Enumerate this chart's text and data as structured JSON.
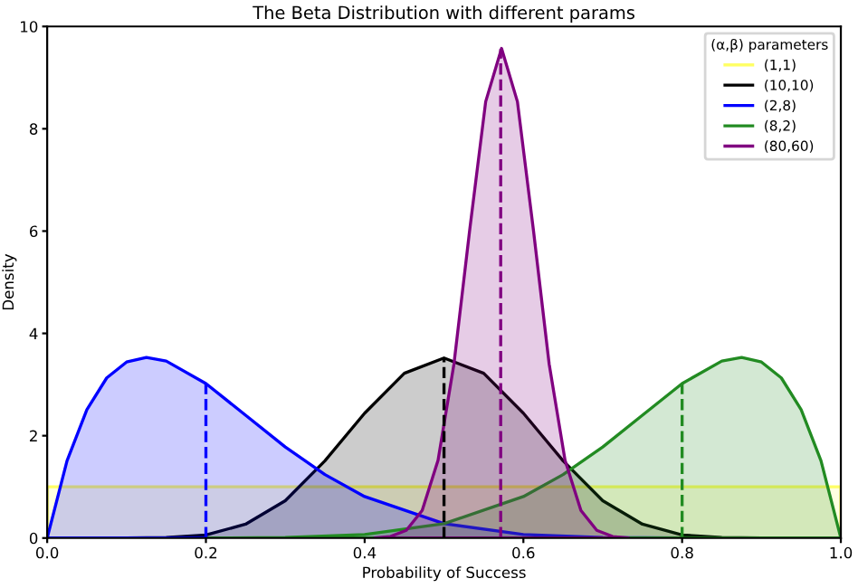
{
  "chart_data": {
    "type": "area",
    "title": "The Beta Distribution with different params",
    "xlabel": "Probability of Success",
    "ylabel": "Density",
    "legend_title": "(α,β) parameters",
    "legend": "top right",
    "grid": false,
    "xlim": [
      0,
      1
    ],
    "ylim": [
      0,
      10
    ],
    "xticks": [
      {
        "value": 0,
        "label": "0.0"
      },
      {
        "value": 0.2,
        "label": "0.2"
      },
      {
        "value": 0.4,
        "label": "0.4"
      },
      {
        "value": 0.6,
        "label": "0.6"
      },
      {
        "value": 0.8,
        "label": "0.8"
      },
      {
        "value": 1,
        "label": "1.0"
      }
    ],
    "yticks": [
      0,
      2,
      4,
      6,
      8,
      10
    ],
    "series": [
      {
        "name": "(1,1)",
        "color": "#ffff66",
        "x": [
          0,
          1
        ],
        "values": [
          1,
          1
        ]
      },
      {
        "name": "(10,10)",
        "color": "#000000",
        "x": [
          0.1,
          0.15,
          0.2,
          0.25,
          0.3,
          0.35,
          0.4,
          0.45,
          0.5,
          0.55,
          0.6,
          0.65,
          0.7,
          0.75,
          0.8,
          0.85,
          0.9
        ],
        "values": [
          0.0,
          0.01,
          0.06,
          0.27,
          0.73,
          1.51,
          2.44,
          3.22,
          3.52,
          3.22,
          2.44,
          1.51,
          0.73,
          0.27,
          0.06,
          0.01,
          0.0
        ]
      },
      {
        "name": "(2,8)",
        "color": "#0000ff",
        "x": [
          0,
          0.025,
          0.05,
          0.075,
          0.1,
          0.125,
          0.15,
          0.2,
          0.25,
          0.3,
          0.35,
          0.4,
          0.5,
          0.6,
          0.7,
          0.8
        ],
        "values": [
          0,
          1.51,
          2.51,
          3.13,
          3.44,
          3.53,
          3.46,
          3.02,
          2.4,
          1.78,
          1.24,
          0.81,
          0.28,
          0.07,
          0.01,
          0.0
        ]
      },
      {
        "name": "(8,2)",
        "color": "#228b22",
        "x": [
          0.2,
          0.3,
          0.4,
          0.5,
          0.6,
          0.65,
          0.7,
          0.75,
          0.8,
          0.85,
          0.875,
          0.9,
          0.925,
          0.95,
          0.975,
          1
        ],
        "values": [
          0.0,
          0.01,
          0.07,
          0.28,
          0.81,
          1.24,
          1.78,
          2.4,
          3.02,
          3.46,
          3.53,
          3.44,
          3.13,
          2.51,
          1.51,
          0
        ]
      },
      {
        "name": "(80,60)",
        "color": "#800080",
        "x": [
          0.4125,
          0.4325,
          0.4525,
          0.4725,
          0.4925,
          0.5125,
          0.5325,
          0.5525,
          0.5725,
          0.5925,
          0.6125,
          0.6325,
          0.6525,
          0.6725,
          0.6925,
          0.7125,
          0.7325
        ],
        "values": [
          0.0,
          0.03,
          0.15,
          0.54,
          1.52,
          3.4,
          6.04,
          8.53,
          9.57,
          8.53,
          6.04,
          3.4,
          1.52,
          0.54,
          0.15,
          0.03,
          0.0
        ]
      },
      {
        "type": "line",
        "line_style": "dashed",
        "color": "#0000ff",
        "x": [
          0.2,
          0.2
        ],
        "values": [
          0,
          3.02
        ]
      },
      {
        "type": "line",
        "line_style": "dashed",
        "color": "#000000",
        "x": [
          0.5,
          0.5
        ],
        "values": [
          0,
          3.52
        ]
      },
      {
        "type": "line",
        "line_style": "dashed",
        "color": "#228b22",
        "x": [
          0.8,
          0.8
        ],
        "values": [
          0,
          3.02
        ]
      },
      {
        "type": "line",
        "line_style": "dashed",
        "color": "#800080",
        "x": [
          0.5714,
          0.5714
        ],
        "values": [
          0,
          9.56
        ]
      }
    ]
  }
}
